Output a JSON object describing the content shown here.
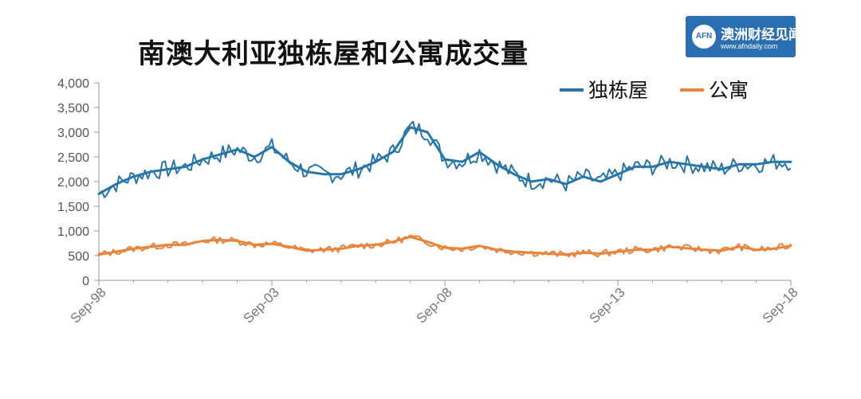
{
  "title": "南澳大利亚独栋屋和公寓成交量",
  "logo": {
    "badge": "AFN",
    "name": "澳洲财经见闻",
    "url": "www.afndaily.com"
  },
  "colors": {
    "house": "#2876a8",
    "apartment": "#e8843c",
    "axis": "#999999"
  },
  "chart_data": {
    "type": "line",
    "title": "南澳大利亚独栋屋和公寓成交量",
    "xlabel": "",
    "ylabel": "",
    "ylim": [
      0,
      4000
    ],
    "yticks": [
      "0",
      "500",
      "1,000",
      "1,500",
      "2,000",
      "2,500",
      "3,000",
      "3,500",
      "4,000"
    ],
    "xticks": [
      "Sep-98",
      "Sep-03",
      "Sep-08",
      "Sep-13",
      "Sep-18"
    ],
    "legend_position": "top-right",
    "grid": false,
    "series": [
      {
        "name": "独栋屋",
        "color": "#2876a8",
        "x": [
          "Sep-98",
          "Mar-99",
          "Sep-99",
          "Mar-00",
          "Sep-00",
          "Mar-01",
          "Sep-01",
          "Mar-02",
          "Sep-02",
          "Mar-03",
          "Sep-03",
          "Mar-04",
          "Sep-04",
          "Mar-05",
          "Sep-05",
          "Mar-06",
          "Sep-06",
          "Mar-07",
          "Sep-07",
          "Mar-08",
          "Sep-08",
          "Mar-09",
          "Sep-09",
          "Mar-10",
          "Sep-10",
          "Mar-11",
          "Sep-11",
          "Mar-12",
          "Sep-12",
          "Mar-13",
          "Sep-13",
          "Mar-14",
          "Sep-14",
          "Mar-15",
          "Sep-15",
          "Mar-16",
          "Sep-16",
          "Mar-17",
          "Sep-17",
          "Mar-18",
          "Sep-18"
        ],
        "values": [
          1750,
          1950,
          2100,
          2200,
          2250,
          2300,
          2450,
          2550,
          2650,
          2500,
          2700,
          2400,
          2200,
          2150,
          2150,
          2250,
          2400,
          2600,
          3100,
          3000,
          2450,
          2400,
          2600,
          2350,
          2150,
          2000,
          2050,
          1950,
          2100,
          2000,
          2150,
          2300,
          2300,
          2400,
          2350,
          2300,
          2250,
          2350,
          2350,
          2400,
          2400
        ]
      },
      {
        "name": "公寓",
        "color": "#e8843c",
        "x": [
          "Sep-98",
          "Mar-99",
          "Sep-99",
          "Mar-00",
          "Sep-00",
          "Mar-01",
          "Sep-01",
          "Mar-02",
          "Sep-02",
          "Mar-03",
          "Sep-03",
          "Mar-04",
          "Sep-04",
          "Mar-05",
          "Sep-05",
          "Mar-06",
          "Sep-06",
          "Mar-07",
          "Sep-07",
          "Mar-08",
          "Sep-08",
          "Mar-09",
          "Sep-09",
          "Mar-10",
          "Sep-10",
          "Mar-11",
          "Sep-11",
          "Mar-12",
          "Sep-12",
          "Mar-13",
          "Sep-13",
          "Mar-14",
          "Sep-14",
          "Mar-15",
          "Sep-15",
          "Mar-16",
          "Sep-16",
          "Mar-17",
          "Sep-17",
          "Mar-18",
          "Sep-18"
        ],
        "values": [
          520,
          580,
          640,
          680,
          720,
          720,
          800,
          820,
          800,
          720,
          740,
          680,
          600,
          620,
          640,
          700,
          720,
          780,
          880,
          780,
          660,
          640,
          700,
          620,
          580,
          560,
          540,
          520,
          560,
          540,
          580,
          620,
          620,
          680,
          650,
          620,
          600,
          680,
          620,
          640,
          700
        ]
      }
    ]
  }
}
